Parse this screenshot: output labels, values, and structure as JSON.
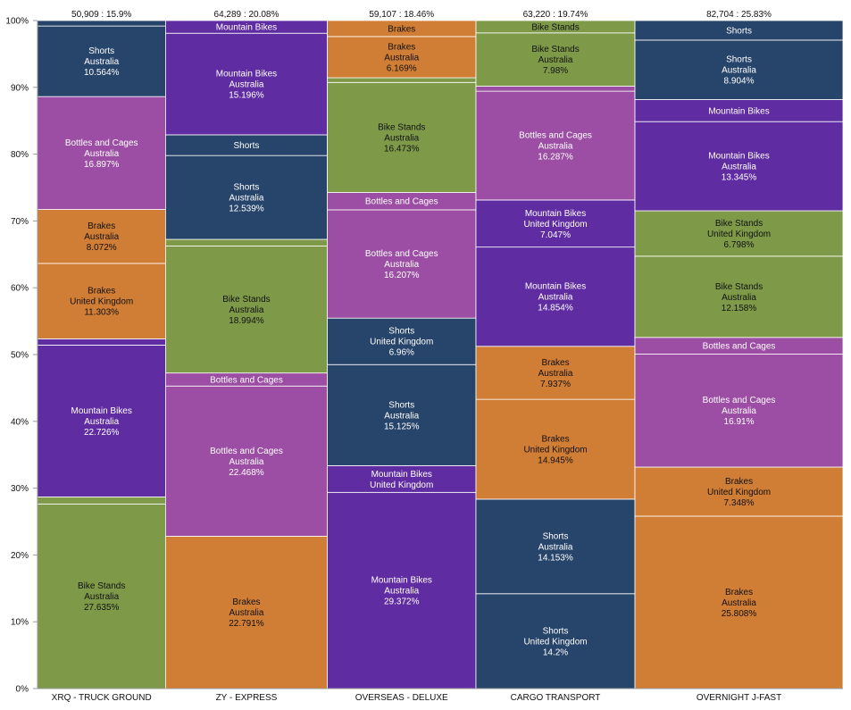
{
  "chart_data": {
    "type": "marimekko",
    "yaxis": {
      "ticks": [
        "0%",
        "10%",
        "20%",
        "30%",
        "40%",
        "50%",
        "60%",
        "70%",
        "80%",
        "90%",
        "100%"
      ]
    },
    "colors": {
      "Shorts": "#27446b",
      "Bottles and Cages": "#9b4ea3",
      "Brakes": "#d07d35",
      "Mountain Bikes": "#5f2ca1",
      "Bike Stands": "#7e9a48"
    },
    "columns": [
      {
        "name": "XRQ - TRUCK GROUND",
        "header": "50,909 : 15.9%",
        "share": 15.9,
        "segments": [
          {
            "category": "Bike Stands",
            "country": "Australia",
            "pct": 27.635,
            "lines": [
              "Bike Stands",
              "Australia",
              "27.635%"
            ]
          },
          {
            "category": "Bike Stands",
            "country": "United Kingdom",
            "pct": 1.05,
            "lines": []
          },
          {
            "category": "Mountain Bikes",
            "country": "Australia",
            "pct": 22.726,
            "lines": [
              "Mountain Bikes",
              "Australia",
              "22.726%"
            ]
          },
          {
            "category": "Mountain Bikes",
            "country": "United Kingdom",
            "pct": 0.93,
            "lines": []
          },
          {
            "category": "Brakes",
            "country": "United Kingdom",
            "pct": 11.303,
            "lines": [
              "Brakes",
              "United Kingdom",
              "11.303%"
            ]
          },
          {
            "category": "Brakes",
            "country": "Australia",
            "pct": 8.072,
            "lines": [
              "Brakes",
              "Australia",
              "8.072%"
            ]
          },
          {
            "category": "Bottles and Cages",
            "country": "Australia",
            "pct": 16.897,
            "lines": [
              "Bottles and Cages",
              "Australia",
              "16.897%"
            ]
          },
          {
            "category": "Shorts",
            "country": "Australia",
            "pct": 10.564,
            "lines": [
              "Shorts",
              "Australia",
              "10.564%"
            ]
          },
          {
            "category": "Shorts",
            "country": "United Kingdom",
            "pct": 0.82,
            "lines": []
          }
        ]
      },
      {
        "name": "ZY - EXPRESS",
        "header": "64,289 : 20.08%",
        "share": 20.08,
        "segments": [
          {
            "category": "Brakes",
            "country": "Australia",
            "pct": 22.791,
            "lines": [
              "Brakes",
              "Australia",
              "22.791%"
            ]
          },
          {
            "category": "Bottles and Cages",
            "country": "Australia",
            "pct": 22.468,
            "lines": [
              "Bottles and Cages",
              "Australia",
              "22.468%"
            ]
          },
          {
            "category": "Bottles and Cages",
            "country": "United Kingdom",
            "pct": 1.95,
            "lines": [
              "Bottles and Cages"
            ]
          },
          {
            "category": "Bike Stands",
            "country": "Australia",
            "pct": 18.994,
            "lines": [
              "Bike Stands",
              "Australia",
              "18.994%"
            ]
          },
          {
            "category": "Bike Stands",
            "country": "United Kingdom",
            "pct": 1.0,
            "lines": []
          },
          {
            "category": "Shorts",
            "country": "Australia",
            "pct": 12.539,
            "lines": [
              "Shorts",
              "Australia",
              "12.539%"
            ]
          },
          {
            "category": "Shorts",
            "country": "United Kingdom",
            "pct": 3.1,
            "lines": [
              "Shorts"
            ]
          },
          {
            "category": "Mountain Bikes",
            "country": "Australia",
            "pct": 15.196,
            "lines": [
              "Mountain Bikes",
              "Australia",
              "15.196%"
            ]
          },
          {
            "category": "Mountain Bikes",
            "country": "United Kingdom",
            "pct": 1.9,
            "lines": [
              "Mountain Bikes"
            ]
          }
        ]
      },
      {
        "name": "OVERSEAS - DELUXE",
        "header": "59,107 : 18.46%",
        "share": 18.46,
        "segments": [
          {
            "category": "Mountain Bikes",
            "country": "Australia",
            "pct": 29.372,
            "lines": [
              "Mountain Bikes",
              "Australia",
              "29.372%"
            ]
          },
          {
            "category": "Mountain Bikes",
            "country": "United Kingdom",
            "pct": 4.0,
            "lines": [
              "Mountain Bikes",
              "United Kingdom"
            ]
          },
          {
            "category": "Shorts",
            "country": "Australia",
            "pct": 15.125,
            "lines": [
              "Shorts",
              "Australia",
              "15.125%"
            ]
          },
          {
            "category": "Shorts",
            "country": "United Kingdom",
            "pct": 6.96,
            "lines": [
              "Shorts",
              "United Kingdom",
              "6.96%"
            ]
          },
          {
            "category": "Bottles and Cages",
            "country": "Australia",
            "pct": 16.207,
            "lines": [
              "Bottles and Cages",
              "Australia",
              "16.207%"
            ]
          },
          {
            "category": "Bottles and Cages",
            "country": "United Kingdom",
            "pct": 2.6,
            "lines": [
              "Bottles and Cages"
            ]
          },
          {
            "category": "Bike Stands",
            "country": "Australia",
            "pct": 16.473,
            "lines": [
              "Bike Stands",
              "Australia",
              "16.473%"
            ]
          },
          {
            "category": "Bike Stands",
            "country": "United Kingdom",
            "pct": 0.7,
            "lines": []
          },
          {
            "category": "Brakes",
            "country": "Australia",
            "pct": 6.169,
            "lines": [
              "Brakes",
              "Australia",
              "6.169%"
            ]
          },
          {
            "category": "Brakes",
            "country": "United Kingdom",
            "pct": 2.394,
            "lines": [
              "Brakes"
            ]
          }
        ]
      },
      {
        "name": "CARGO TRANSPORT",
        "header": "63,220 : 19.74%",
        "share": 19.74,
        "segments": [
          {
            "category": "Shorts",
            "country": "United Kingdom",
            "pct": 14.2,
            "lines": [
              "Shorts",
              "United Kingdom",
              "14.2%"
            ]
          },
          {
            "category": "Shorts",
            "country": "Australia",
            "pct": 14.153,
            "lines": [
              "Shorts",
              "Australia",
              "14.153%"
            ]
          },
          {
            "category": "Brakes",
            "country": "United Kingdom",
            "pct": 14.945,
            "lines": [
              "Brakes",
              "United Kingdom",
              "14.945%"
            ]
          },
          {
            "category": "Brakes",
            "country": "Australia",
            "pct": 7.937,
            "lines": [
              "Brakes",
              "Australia",
              "7.937%"
            ]
          },
          {
            "category": "Mountain Bikes",
            "country": "Australia",
            "pct": 14.854,
            "lines": [
              "Mountain Bikes",
              "Australia",
              "14.854%"
            ]
          },
          {
            "category": "Mountain Bikes",
            "country": "United Kingdom",
            "pct": 7.047,
            "lines": [
              "Mountain Bikes",
              "United Kingdom",
              "7.047%"
            ]
          },
          {
            "category": "Bottles and Cages",
            "country": "Australia",
            "pct": 16.287,
            "lines": [
              "Bottles and Cages",
              "Australia",
              "16.287%"
            ]
          },
          {
            "category": "Bottles and Cages",
            "country": "United Kingdom",
            "pct": 0.75,
            "lines": []
          },
          {
            "category": "Bike Stands",
            "country": "Australia",
            "pct": 7.98,
            "lines": [
              "Bike Stands",
              "Australia",
              "7.98%"
            ]
          },
          {
            "category": "Bike Stands",
            "country": "United Kingdom",
            "pct": 1.847,
            "lines": [
              "Bike Stands"
            ]
          }
        ]
      },
      {
        "name": "OVERNIGHT J-FAST",
        "header": "82,704 : 25.83%",
        "share": 25.83,
        "segments": [
          {
            "category": "Brakes",
            "country": "Australia",
            "pct": 25.808,
            "lines": [
              "Brakes",
              "Australia",
              "25.808%"
            ]
          },
          {
            "category": "Brakes",
            "country": "United Kingdom",
            "pct": 7.348,
            "lines": [
              "Brakes",
              "United Kingdom",
              "7.348%"
            ]
          },
          {
            "category": "Bottles and Cages",
            "country": "Australia",
            "pct": 16.91,
            "lines": [
              "Bottles and Cages",
              "Australia",
              "16.91%"
            ]
          },
          {
            "category": "Bottles and Cages",
            "country": "United Kingdom",
            "pct": 2.5,
            "lines": [
              "Bottles and Cages"
            ]
          },
          {
            "category": "Bike Stands",
            "country": "Australia",
            "pct": 12.158,
            "lines": [
              "Bike Stands",
              "Australia",
              "12.158%"
            ]
          },
          {
            "category": "Bike Stands",
            "country": "United Kingdom",
            "pct": 6.798,
            "lines": [
              "Bike Stands",
              "United Kingdom",
              "6.798%"
            ]
          },
          {
            "category": "Mountain Bikes",
            "country": "Australia",
            "pct": 13.345,
            "lines": [
              "Mountain Bikes",
              "Australia",
              "13.345%"
            ]
          },
          {
            "category": "Mountain Bikes",
            "country": "United Kingdom",
            "pct": 3.3,
            "lines": [
              "Mountain Bikes"
            ]
          },
          {
            "category": "Shorts",
            "country": "Australia",
            "pct": 8.904,
            "lines": [
              "Shorts",
              "Australia",
              "8.904%"
            ]
          },
          {
            "category": "Shorts",
            "country": "United Kingdom",
            "pct": 2.929,
            "lines": [
              "Shorts"
            ]
          }
        ]
      }
    ]
  }
}
